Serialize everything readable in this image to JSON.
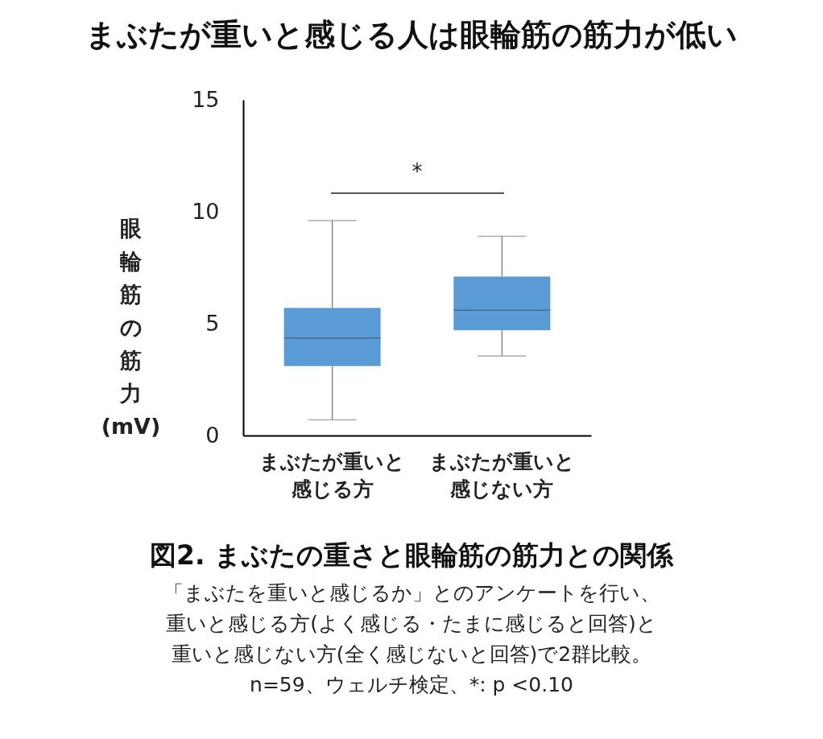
{
  "chart_data": {
    "type": "box",
    "title": "まぶたが重いと感じる人は眼輪筋の筋力が低い",
    "subtitle": "図2. まぶたの重さと眼輪筋の筋力との関係",
    "ylabel": "眼輪筋の筋力(mV)",
    "categories": [
      "まぶたが重いと感じる方",
      "まぶたが重いと感じない方"
    ],
    "color": "#5b9bd5",
    "boxes": [
      {
        "low": 0.7,
        "q1": 3.1,
        "median": 4.35,
        "q3": 5.7,
        "high": 9.6
      },
      {
        "low": 3.55,
        "q1": 4.7,
        "median": 5.6,
        "q3": 7.1,
        "high": 8.9
      }
    ],
    "ylim": [
      0,
      15
    ],
    "yticks": [
      0,
      5,
      10,
      15
    ],
    "grid": false,
    "annotations": [
      "*",
      "「まぶたを重いと感じるか」とのアンケートを行い、",
      "重いと感じる方(よく感じる・たまに感じると回答)と",
      "重いと感じない方(全く感じないと回答)で2群比較。",
      "n=59、ウェルチ検定、*: p <0.10"
    ]
  }
}
